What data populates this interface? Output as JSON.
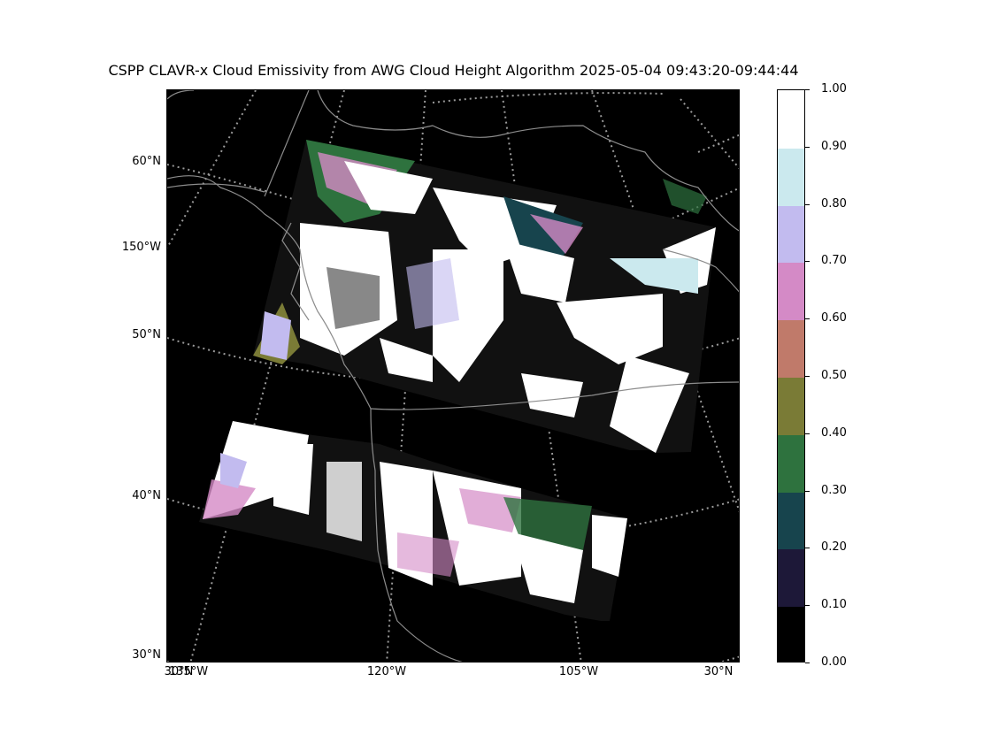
{
  "title": "CSPP CLAVR-x Cloud Emissivity from AWG Cloud Height Algorithm 2025-05-04 09:43:20-09:44:44",
  "map": {
    "background_color": "#000000",
    "coastline_color": "#8c8c8c",
    "graticule_color": "#9a9a9a",
    "lat_labels": [
      "60°N",
      "150°W",
      "50°N",
      "40°N",
      "30°N"
    ],
    "lon_labels": [
      "135°W",
      "30°N",
      "120°W",
      "105°W",
      "30°N"
    ]
  },
  "colorbar": {
    "ticks": [
      "1.00",
      "0.90",
      "0.80",
      "0.70",
      "0.60",
      "0.50",
      "0.40",
      "0.30",
      "0.20",
      "0.10",
      "0.00"
    ],
    "colors": [
      "#000000",
      "#1d1838",
      "#17444d",
      "#2e723e",
      "#7a7b36",
      "#c07a6a",
      "#d48ac6",
      "#c2bbef",
      "#cbe9ee",
      "#ffffff"
    ]
  }
}
